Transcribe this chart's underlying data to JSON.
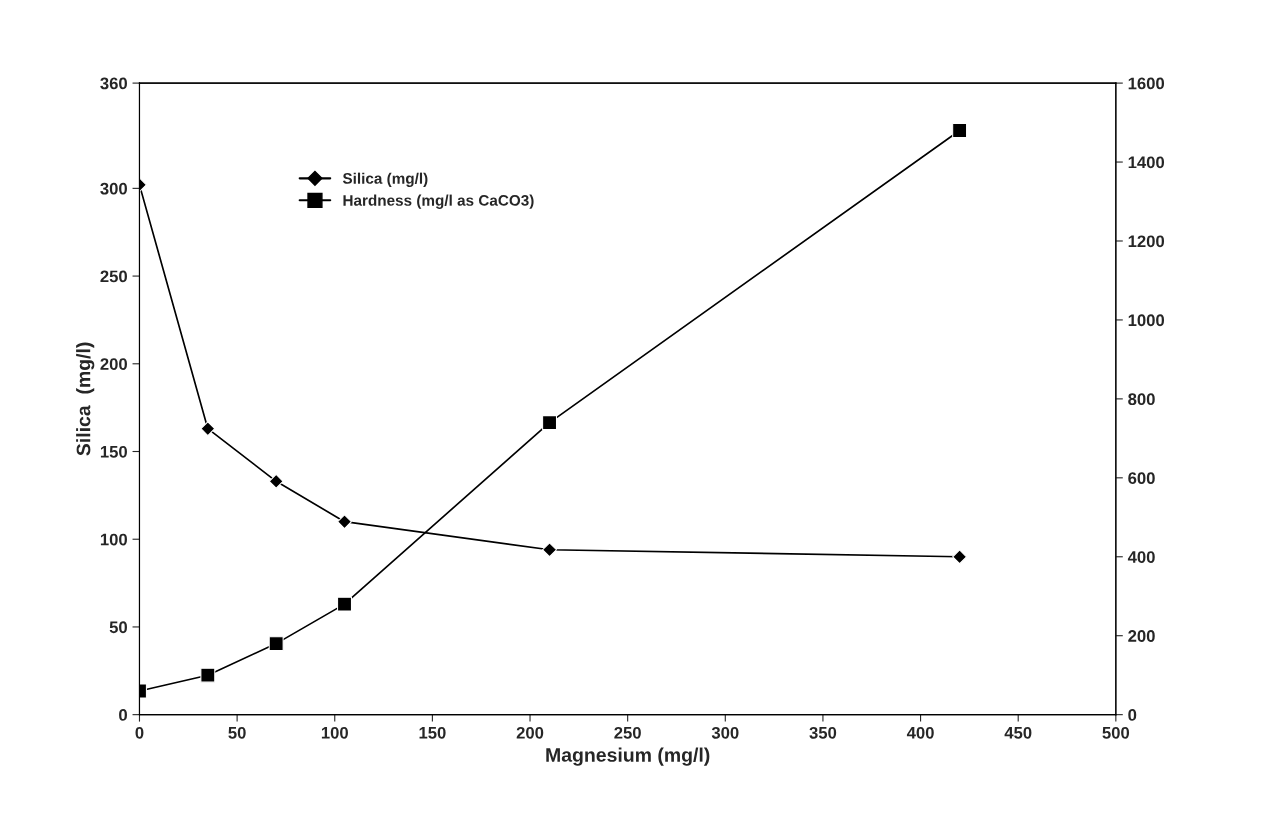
{
  "chart_data": {
    "type": "line",
    "xlabel": "Magnesium (mg/l)",
    "ylabel": "Silica  (mg/l)",
    "x": [
      0,
      35,
      70,
      105,
      210,
      420
    ],
    "series": [
      {
        "name": "Silica (mg/l)",
        "color": "#000000",
        "marker": "diamond",
        "values": [
          302,
          163,
          133,
          110,
          94,
          90
        ]
      },
      {
        "name": "Hardness (mg/l as CaCO3)",
        "color": "#000000",
        "marker": "square",
        "axis": "y2",
        "values": [
          60,
          100,
          180,
          280,
          740,
          1480
        ]
      }
    ],
    "xlim": [
      0,
      500
    ],
    "xticks": [
      0,
      50,
      100,
      150,
      200,
      250,
      300,
      350,
      400,
      450,
      500
    ],
    "ylim": [
      0,
      360
    ],
    "yticks": [
      0,
      50,
      100,
      150,
      200,
      250,
      300,
      360
    ],
    "y2lim": [
      0,
      1600
    ],
    "y2ticks": [
      0,
      200,
      400,
      600,
      800,
      1000,
      1200,
      1400,
      1600
    ],
    "grid": false,
    "legend": "top left",
    "line_style": "solid"
  }
}
